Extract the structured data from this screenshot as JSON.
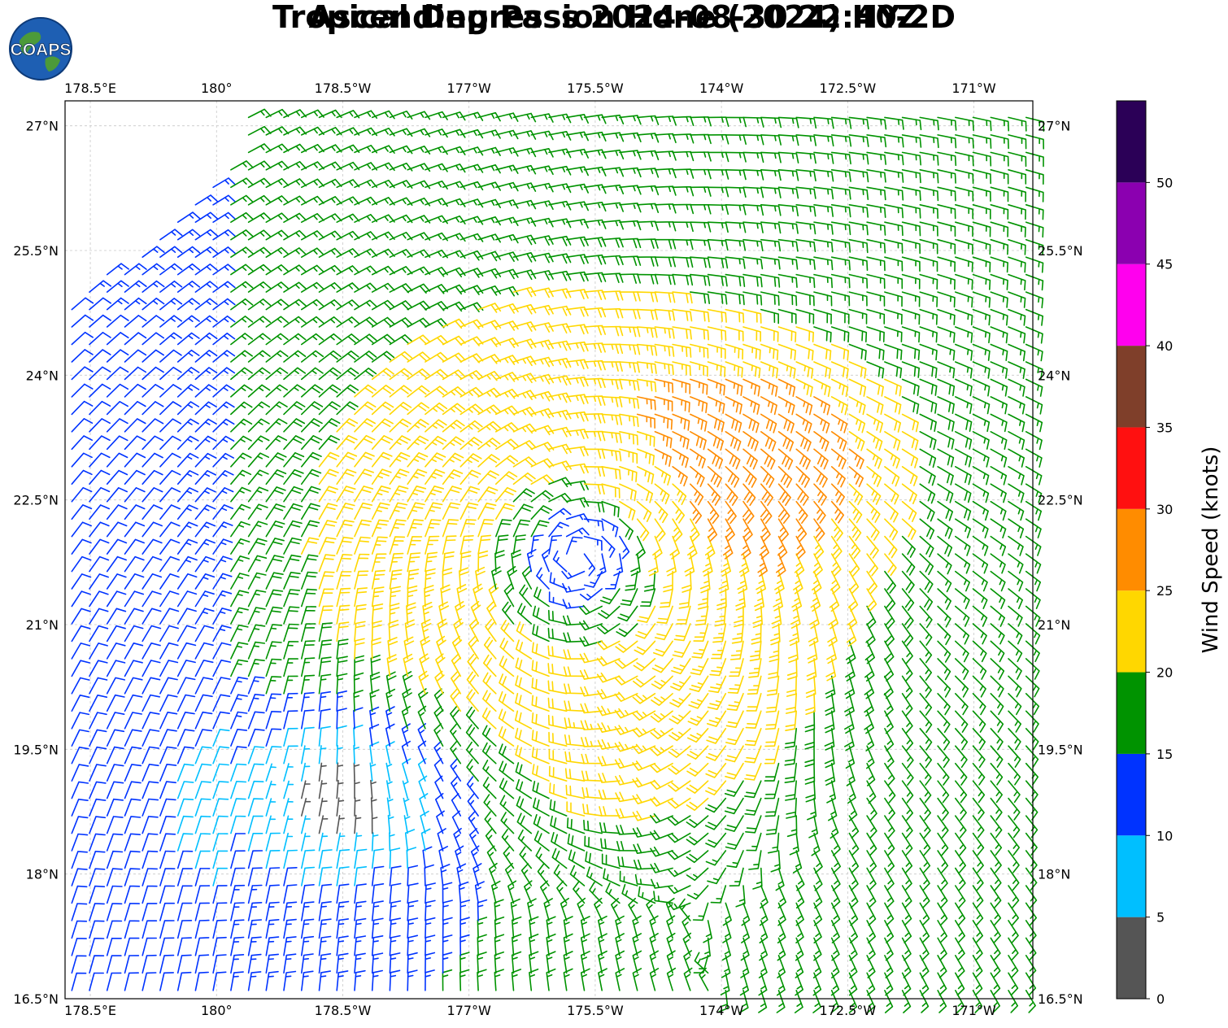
{
  "title": {
    "line1": "Tropical Depression Hone (2024) HY-2D",
    "line2": "Ascending Pass 2024-08-30 22:40Z"
  },
  "logo": {
    "text": "COAPS",
    "icon": "earth-globe-icon"
  },
  "map": {
    "lon_labels": [
      "178.5°E",
      "180°",
      "178.5°W",
      "177°W",
      "175.5°W",
      "174°W",
      "172.5°W",
      "171°W"
    ],
    "lat_labels": [
      "27°N",
      "25.5°N",
      "24°N",
      "22.5°N",
      "21°N",
      "19.5°N",
      "18°N",
      "16.5°N"
    ],
    "lon_range": [
      178.2,
      189.7
    ],
    "lat_range": [
      16.5,
      27.3
    ],
    "gridlines": true,
    "storm_center": {
      "lon": 184.3,
      "lat": 21.8
    }
  },
  "colorbar": {
    "label": "Wind Speed (knots)",
    "ticks": [
      "0",
      "5",
      "10",
      "15",
      "20",
      "25",
      "30",
      "35",
      "40",
      "45",
      "50"
    ],
    "max": 55,
    "colors": [
      "#555555",
      "#00bfff",
      "#0033ff",
      "#009300",
      "#ffd700",
      "#ff8c00",
      "#ff1010",
      "#7f3f2a",
      "#ff00ee",
      "#8b00b0",
      "#2b0057"
    ]
  }
}
